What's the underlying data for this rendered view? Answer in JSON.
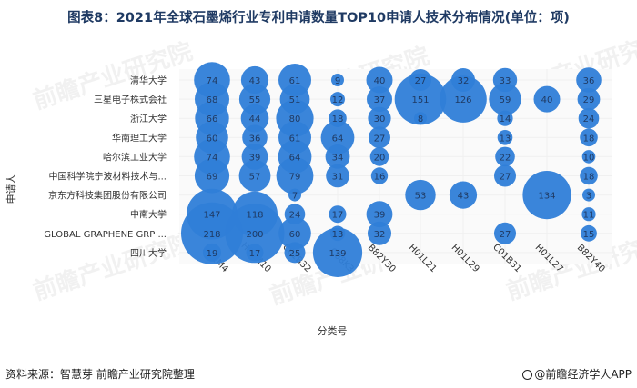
{
  "title": "图表8：2021年全球石墨烯行业专利申请数量TOP10申请人技术分布情况(单位：项)",
  "source": "资料来源：智慧芽 前瞻产业研究院整理",
  "brand": "@前瞻经济学人APP",
  "watermark": "前瞻产业研究院",
  "colors": {
    "bubble": "#2f7ed8",
    "bubble_label": "#1f3a63",
    "grid": "#f0f0f0",
    "title": "#1f3a63"
  },
  "chart_data": {
    "type": "bubble",
    "xlabel": "分类号",
    "ylabel": "申请人",
    "grid": true,
    "categories_x": [
      "H01M4",
      "H01M10",
      "C01B32",
      "C08K3",
      "B82Y30",
      "H01L21",
      "H01L29",
      "C01B31",
      "H01L27",
      "B82Y40"
    ],
    "categories_y": [
      "清华大学",
      "三星电子株式会社",
      "浙江大学",
      "华南理工大学",
      "哈尔滨工业大学",
      "中国科学院宁波材料技术与...",
      "京东方科技集团股份有限公司",
      "中南大学",
      "GLOBAL GRAPHENE GRP ...",
      "四川大学"
    ],
    "values": [
      [
        74,
        43,
        61,
        9,
        40,
        27,
        32,
        33,
        null,
        36
      ],
      [
        68,
        55,
        51,
        12,
        37,
        151,
        126,
        59,
        40,
        29
      ],
      [
        66,
        44,
        80,
        18,
        30,
        8,
        null,
        14,
        null,
        24
      ],
      [
        60,
        36,
        61,
        64,
        27,
        null,
        null,
        13,
        null,
        18
      ],
      [
        74,
        39,
        64,
        34,
        20,
        null,
        null,
        22,
        null,
        10
      ],
      [
        69,
        57,
        79,
        31,
        16,
        null,
        null,
        27,
        null,
        18
      ],
      [
        null,
        null,
        7,
        null,
        null,
        53,
        43,
        null,
        134,
        3
      ],
      [
        147,
        118,
        24,
        17,
        39,
        null,
        null,
        null,
        null,
        11
      ],
      [
        218,
        200,
        60,
        13,
        32,
        null,
        null,
        27,
        null,
        15
      ],
      [
        19,
        17,
        25,
        139,
        null,
        null,
        null,
        null,
        null,
        null
      ]
    ]
  }
}
